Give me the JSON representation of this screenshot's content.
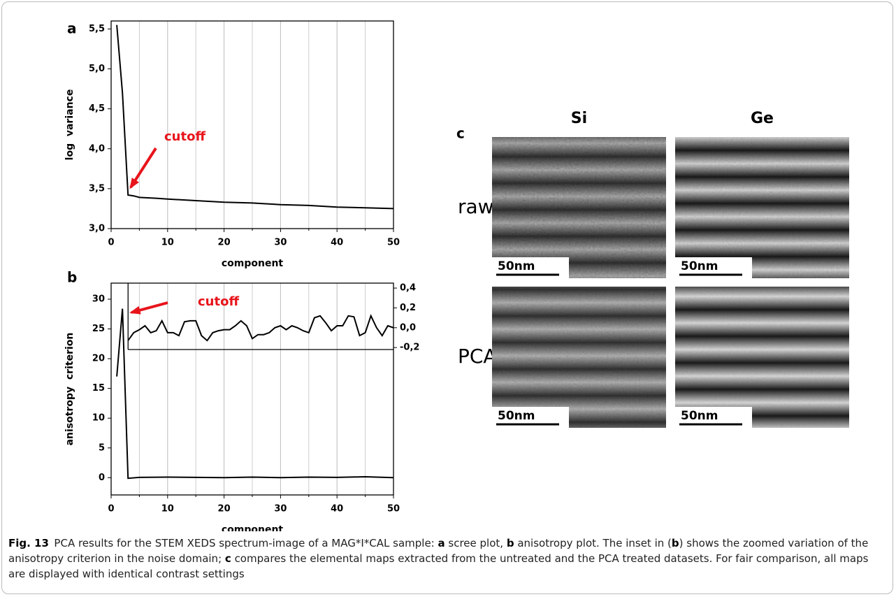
{
  "chart_data": [
    {
      "type": "line",
      "panel": "a",
      "xlabel": "component",
      "ylabel": "log  variance",
      "annotation": "cutoff",
      "xlim": [
        0,
        50
      ],
      "xticks": [
        0,
        10,
        20,
        30,
        40,
        50
      ],
      "xminorticks": [
        5,
        15,
        25,
        35,
        45
      ],
      "ylim": [
        3.0,
        5.6
      ],
      "yticks": [
        {
          "value": 3.0,
          "label": "3,0"
        },
        {
          "value": 3.5,
          "label": "3,5"
        },
        {
          "value": 4.0,
          "label": "4,0"
        },
        {
          "value": 4.5,
          "label": "4,5"
        },
        {
          "value": 5.0,
          "label": "5,0"
        },
        {
          "value": 5.5,
          "label": "5,5"
        }
      ],
      "grid": true,
      "series": [
        {
          "color": "#000000",
          "x": [
            1,
            2,
            3,
            4,
            5,
            8,
            10,
            15,
            20,
            25,
            30,
            35,
            40,
            45,
            50
          ],
          "values": [
            5.55,
            4.7,
            3.42,
            3.41,
            3.39,
            3.38,
            3.37,
            3.35,
            3.33,
            3.32,
            3.3,
            3.29,
            3.27,
            3.26,
            3.25
          ]
        }
      ]
    },
    {
      "type": "line",
      "panel": "b",
      "xlabel": "component",
      "ylabel": "anisotropy  criterion",
      "annotation": "cutoff",
      "xlim": [
        0,
        50
      ],
      "xticks": [
        0,
        10,
        20,
        30,
        40,
        50
      ],
      "xminorticks": [
        5,
        15,
        25,
        35,
        45
      ],
      "ylim": [
        -2.9,
        32.7
      ],
      "yticks": [
        0,
        5,
        10,
        15,
        20,
        25,
        30
      ],
      "y2lim": [
        -0.22,
        0.45
      ],
      "y2ticks": [
        {
          "value": -0.2,
          "label": "-0,2"
        },
        {
          "value": 0.0,
          "label": "0,0"
        },
        {
          "value": 0.2,
          "label": "0,2"
        },
        {
          "value": 0.4,
          "label": "0,4"
        }
      ],
      "grid": true,
      "series": [
        {
          "color": "#000000",
          "x": [
            1,
            2,
            3,
            5,
            10,
            15,
            20,
            25,
            30,
            35,
            40,
            45,
            50
          ],
          "values": [
            17,
            28.4,
            -0.1,
            0.05,
            0.1,
            0.05,
            0,
            0.1,
            0,
            0.1,
            0.05,
            0.15,
            0
          ]
        },
        {
          "color": "#000000",
          "axis": "y2",
          "x": [
            3,
            4,
            5,
            6,
            7,
            8,
            9,
            10,
            11,
            12,
            13,
            14,
            15,
            16,
            17,
            18,
            19,
            20,
            21,
            22,
            23,
            24,
            25,
            26,
            27,
            28,
            29,
            30,
            31,
            32,
            33,
            34,
            35,
            36,
            37,
            38,
            39,
            40,
            41,
            42,
            43,
            44,
            45,
            46,
            47,
            48,
            49,
            50
          ],
          "values": [
            -0.13,
            -0.05,
            -0.02,
            0.02,
            -0.05,
            -0.03,
            0.07,
            -0.05,
            -0.05,
            -0.08,
            0.06,
            0.07,
            0.07,
            -0.08,
            -0.13,
            -0.05,
            -0.03,
            -0.02,
            -0.02,
            0.02,
            0.07,
            0.02,
            -0.11,
            -0.07,
            -0.07,
            -0.05,
            0.0,
            0.02,
            -0.02,
            0.02,
            0.0,
            -0.03,
            -0.05,
            0.1,
            0.12,
            0.05,
            -0.03,
            0.02,
            0.02,
            0.12,
            0.11,
            -0.08,
            -0.05,
            0.12,
            0.0,
            -0.08,
            0.02,
            0.0
          ]
        }
      ]
    }
  ],
  "panel_c": {
    "label": "c",
    "columns": [
      "Si",
      "Ge"
    ],
    "rows": [
      "raw",
      "PCA"
    ],
    "scale_bars": [
      "50nm",
      "50nm",
      "50nm",
      "50nm"
    ]
  },
  "caption": {
    "label": "Fig. 13",
    "parts": [
      "PCA results for the STEM XEDS spectrum-image of a MAG*I*CAL sample: ",
      "a",
      " scree plot, ",
      "b",
      " anisotropy plot. The inset in (",
      "b",
      ") shows the zoomed variation of the anisotropy criterion in the noise domain; ",
      "c",
      " compares the elemental maps extracted from the untreated and the PCA treated datasets. For fair comparison, all maps are displayed with identical contrast settings"
    ]
  }
}
